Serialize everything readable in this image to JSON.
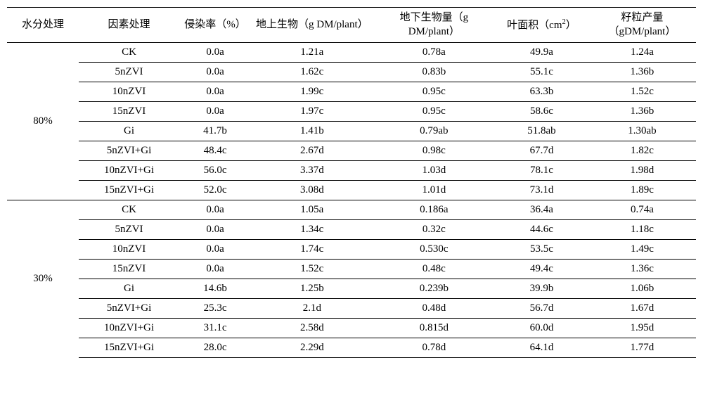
{
  "headers": {
    "water": "水分处理",
    "factor": "因素处理",
    "infect": "侵染率（%）",
    "above": "地上生物（g DM/plant）",
    "below": "地下生物量（g DM/plant）",
    "leaf_prefix": "叶面积（cm",
    "leaf_sup": "2",
    "leaf_suffix": "）",
    "grain": "籽粒产量（gDM/plant）"
  },
  "groups": [
    {
      "water": "80%",
      "rows": [
        {
          "factor": "CK",
          "infect": "0.0a",
          "above": "1.21a",
          "below": "0.78a",
          "leaf": "49.9a",
          "grain": "1.24a"
        },
        {
          "factor": "5nZVI",
          "infect": "0.0a",
          "above": "1.62c",
          "below": "0.83b",
          "leaf": "55.1c",
          "grain": "1.36b"
        },
        {
          "factor": "10nZVI",
          "infect": "0.0a",
          "above": "1.99c",
          "below": "0.95c",
          "leaf": "63.3b",
          "grain": "1.52c"
        },
        {
          "factor": "15nZVI",
          "infect": "0.0a",
          "above": "1.97c",
          "below": "0.95c",
          "leaf": "58.6c",
          "grain": "1.36b"
        },
        {
          "factor": "Gi",
          "infect": "41.7b",
          "above": "1.41b",
          "below": "0.79ab",
          "leaf": "51.8ab",
          "grain": "1.30ab"
        },
        {
          "factor": "5nZVI+Gi",
          "infect": "48.4c",
          "above": "2.67d",
          "below": "0.98c",
          "leaf": "67.7d",
          "grain": "1.82c"
        },
        {
          "factor": "10nZVI+Gi",
          "infect": "56.0c",
          "above": "3.37d",
          "below": "1.03d",
          "leaf": "78.1c",
          "grain": "1.98d"
        },
        {
          "factor": "15nZVI+Gi",
          "infect": "52.0c",
          "above": "3.08d",
          "below": "1.01d",
          "leaf": "73.1d",
          "grain": "1.89c"
        }
      ]
    },
    {
      "water": "30%",
      "rows": [
        {
          "factor": "CK",
          "infect": "0.0a",
          "above": "1.05a",
          "below": "0.186a",
          "leaf": "36.4a",
          "grain": "0.74a"
        },
        {
          "factor": "5nZVI",
          "infect": "0.0a",
          "above": "1.34c",
          "below": "0.32c",
          "leaf": "44.6c",
          "grain": "1.18c"
        },
        {
          "factor": "10nZVI",
          "infect": "0.0a",
          "above": "1.74c",
          "below": "0.530c",
          "leaf": "53.5c",
          "grain": "1.49c"
        },
        {
          "factor": "15nZVI",
          "infect": "0.0a",
          "above": "1.52c",
          "below": "0.48c",
          "leaf": "49.4c",
          "grain": "1.36c"
        },
        {
          "factor": "Gi",
          "infect": "14.6b",
          "above": "1.25b",
          "below": "0.239b",
          "leaf": "39.9b",
          "grain": "1.06b"
        },
        {
          "factor": "5nZVI+Gi",
          "infect": "25.3c",
          "above": "2.1d",
          "below": "0.48d",
          "leaf": "56.7d",
          "grain": "1.67d"
        },
        {
          "factor": "10nZVI+Gi",
          "infect": "31.1c",
          "above": "2.58d",
          "below": "0.815d",
          "leaf": "60.0d",
          "grain": "1.95d"
        },
        {
          "factor": "15nZVI+Gi",
          "infect": "28.0c",
          "above": "2.29d",
          "below": "0.78d",
          "leaf": "64.1d",
          "grain": "1.77d"
        }
      ]
    }
  ]
}
